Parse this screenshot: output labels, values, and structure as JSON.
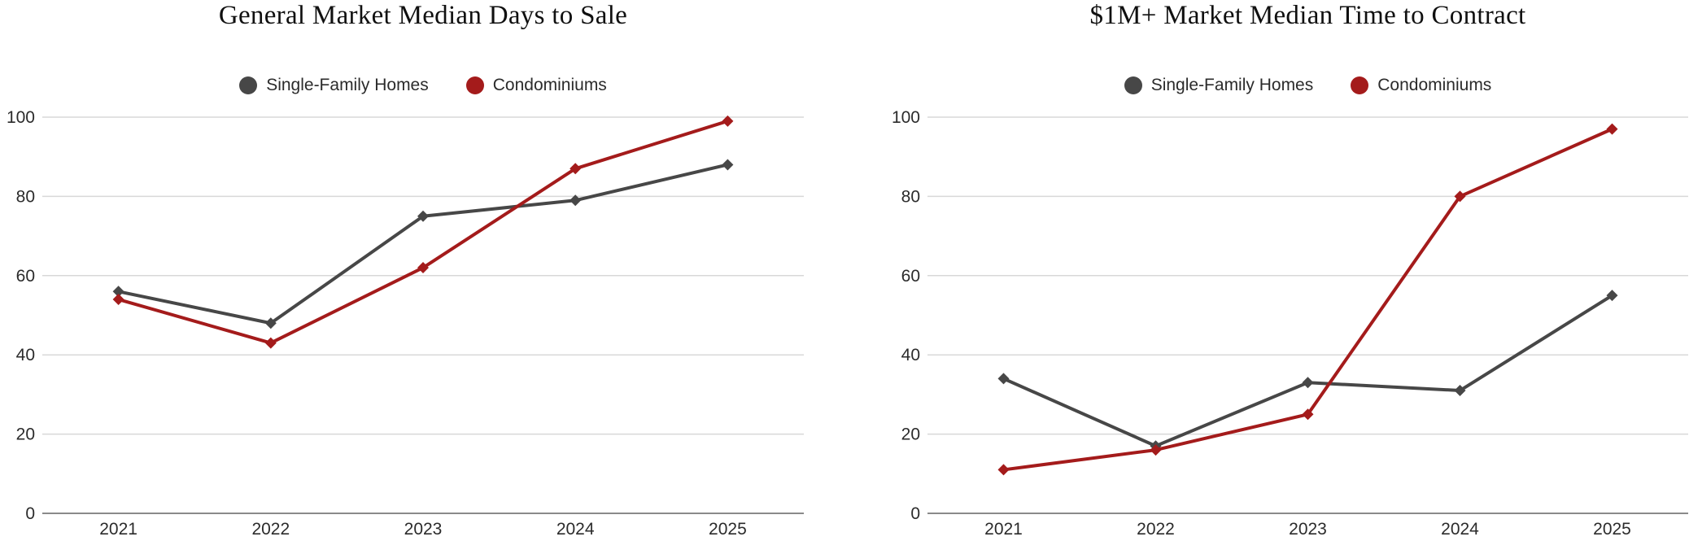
{
  "chart_data": [
    {
      "type": "line",
      "title": "General Market Median Days to Sale",
      "categories": [
        "2021",
        "2022",
        "2023",
        "2024",
        "2025"
      ],
      "series": [
        {
          "name": "Single-Family Homes",
          "color": "#474747",
          "values": [
            56,
            48,
            75,
            79,
            88
          ]
        },
        {
          "name": "Condominiums",
          "color": "#A41B1B",
          "values": [
            54,
            43,
            62,
            87,
            99
          ]
        }
      ],
      "xlabel": "",
      "ylabel": "",
      "ylim": [
        0,
        100
      ],
      "yticks": [
        0,
        20,
        40,
        60,
        80,
        100
      ],
      "grid": true,
      "legend_position": "top",
      "marker": "diamond",
      "legend_marker": "circle"
    },
    {
      "type": "line",
      "title": "$1M+ Market Median Time to Contract",
      "categories": [
        "2021",
        "2022",
        "2023",
        "2024",
        "2025"
      ],
      "series": [
        {
          "name": "Single-Family Homes",
          "color": "#474747",
          "values": [
            34,
            17,
            33,
            31,
            55
          ]
        },
        {
          "name": "Condominiums",
          "color": "#A41B1B",
          "values": [
            11,
            16,
            25,
            80,
            97
          ]
        }
      ],
      "xlabel": "",
      "ylabel": "",
      "ylim": [
        0,
        100
      ],
      "yticks": [
        0,
        20,
        40,
        60,
        80,
        100
      ],
      "grid": true,
      "legend_position": "top",
      "marker": "diamond",
      "legend_marker": "circle"
    }
  ],
  "colors": {
    "background": "#FFFFFF",
    "gridline": "#D8D8D8",
    "axis_line": "#8A8A8A",
    "tick_text": "#2B2B2B",
    "title_text": "#101010",
    "single_family": "#474747",
    "condominiums": "#A41B1B"
  }
}
